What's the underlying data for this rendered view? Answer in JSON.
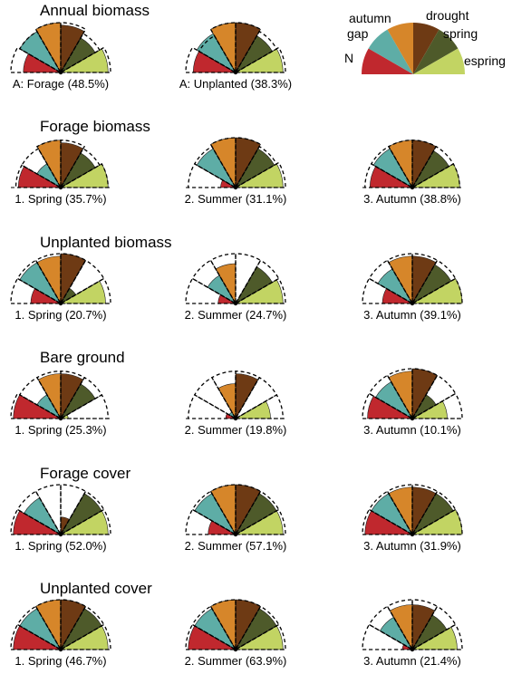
{
  "colors": {
    "N": "#c0282e",
    "gap": "#5eada6",
    "autumn": "#d6862a",
    "drought": "#6e3a14",
    "spring": "#4e5a2a",
    "espring": "#c2d463"
  },
  "legend": {
    "labels": [
      "N",
      "gap",
      "autumn",
      "drought",
      "spring",
      "espring"
    ]
  },
  "chart_data": [
    {
      "type": "polar-bar",
      "section": "Annual biomass",
      "categories": [
        "N",
        "gap",
        "autumn",
        "drought",
        "spring",
        "espring"
      ],
      "panels": [
        {
          "label": "A: Forage (48.5%)",
          "values": [
            0.75,
            0.95,
            1.0,
            0.95,
            0.8,
            0.95
          ],
          "fit": [
            1.0,
            0.95,
            1.0,
            1.0,
            0.9,
            1.0
          ]
        },
        {
          "label": "A: Unplanted (38.3%)",
          "values": [
            0.85,
            0.9,
            1.0,
            1.0,
            0.85,
            0.95
          ],
          "fit": [
            1.0,
            0.85,
            1.0,
            1.0,
            0.95,
            1.0
          ]
        }
      ]
    },
    {
      "type": "polar-bar",
      "section": "Forage biomass",
      "categories": [
        "N",
        "gap",
        "autumn",
        "drought",
        "spring",
        "espring"
      ],
      "panels": [
        {
          "label": "1. Spring (35.7%)",
          "values": [
            0.85,
            0.55,
            0.95,
            0.9,
            0.8,
            0.95
          ],
          "fit": [
            0.9,
            0.9,
            0.95,
            0.95,
            0.9,
            0.95
          ]
        },
        {
          "label": "2. Summer (31.1%)",
          "values": [
            0.3,
            0.9,
            1.0,
            1.0,
            0.9,
            0.95
          ],
          "fit": [
            0.95,
            0.95,
            1.0,
            1.0,
            0.95,
            1.0
          ]
        },
        {
          "label": "3. Autumn (38.8%)",
          "values": [
            0.85,
            0.9,
            0.95,
            0.95,
            0.85,
            0.95
          ],
          "fit": [
            0.95,
            0.95,
            0.95,
            0.95,
            0.95,
            0.95
          ]
        }
      ]
    },
    {
      "type": "polar-bar",
      "section": "Unplanted biomass",
      "categories": [
        "N",
        "gap",
        "autumn",
        "drought",
        "spring",
        "espring"
      ],
      "panels": [
        {
          "label": "1. Spring (20.7%)",
          "values": [
            0.6,
            0.95,
            0.95,
            1.0,
            0.35,
            0.9
          ],
          "fit": [
            1.0,
            1.0,
            1.0,
            1.0,
            1.0,
            1.0
          ]
        },
        {
          "label": "2. Summer (24.7%)",
          "values": [
            0.35,
            0.65,
            0.8,
            0.0,
            0.85,
            0.95
          ],
          "fit": [
            1.0,
            1.0,
            1.0,
            1.0,
            1.0,
            1.0
          ]
        },
        {
          "label": "3. Autumn (39.1%)",
          "values": [
            0.6,
            0.8,
            0.95,
            0.95,
            0.9,
            1.0
          ],
          "fit": [
            1.0,
            1.0,
            1.0,
            1.0,
            1.0,
            1.0
          ]
        }
      ]
    },
    {
      "type": "polar-bar",
      "section": "Bare ground",
      "categories": [
        "N",
        "gap",
        "autumn",
        "drought",
        "spring",
        "espring"
      ],
      "panels": [
        {
          "label": "1. Spring (25.3%)",
          "values": [
            0.95,
            0.55,
            0.9,
            0.9,
            0.8,
            0.15
          ],
          "fit": [
            1.0,
            0.95,
            0.95,
            0.95,
            0.95,
            0.95
          ]
        },
        {
          "label": "2. Summer (19.8%)",
          "values": [
            0.2,
            0.15,
            0.7,
            0.9,
            0.0,
            0.7
          ],
          "fit": [
            0.95,
            0.95,
            0.95,
            0.95,
            0.95,
            0.95
          ]
        },
        {
          "label": "3. Autumn (10.1%)",
          "values": [
            0.9,
            0.85,
            0.95,
            1.0,
            0.55,
            0.7
          ],
          "fit": [
            1.0,
            1.0,
            1.0,
            1.0,
            1.0,
            1.0
          ]
        }
      ]
    },
    {
      "type": "polar-bar",
      "section": "Forage cover",
      "categories": [
        "N",
        "gap",
        "autumn",
        "drought",
        "spring",
        "espring"
      ],
      "panels": [
        {
          "label": "1. Spring (52.0%)",
          "values": [
            0.95,
            0.85,
            0.0,
            0.35,
            0.95,
            0.95
          ],
          "fit": [
            1.0,
            1.0,
            1.0,
            1.0,
            1.0,
            1.0
          ]
        },
        {
          "label": "2. Summer (57.1%)",
          "values": [
            0.55,
            0.95,
            1.0,
            1.0,
            0.95,
            0.95
          ],
          "fit": [
            1.0,
            1.0,
            1.0,
            1.0,
            1.0,
            1.0
          ]
        },
        {
          "label": "3. Autumn (31.9%)",
          "values": [
            0.95,
            0.95,
            0.95,
            0.95,
            0.95,
            1.0
          ],
          "fit": [
            1.0,
            1.0,
            1.0,
            1.0,
            1.0,
            1.0
          ]
        }
      ]
    },
    {
      "type": "polar-bar",
      "section": "Unplanted cover",
      "categories": [
        "N",
        "gap",
        "autumn",
        "drought",
        "spring",
        "espring"
      ],
      "panels": [
        {
          "label": "1. Spring (46.7%)",
          "values": [
            0.95,
            0.95,
            1.0,
            1.0,
            0.95,
            0.95
          ],
          "fit": [
            1.0,
            1.0,
            1.0,
            1.0,
            1.0,
            1.0
          ]
        },
        {
          "label": "2. Summer (63.9%)",
          "values": [
            0.95,
            0.95,
            1.0,
            1.0,
            0.95,
            0.95
          ],
          "fit": [
            1.0,
            1.0,
            1.0,
            1.0,
            1.0,
            1.0
          ]
        },
        {
          "label": "3. Autumn (21.4%)",
          "values": [
            0.2,
            0.75,
            0.9,
            0.9,
            0.8,
            0.9
          ],
          "fit": [
            1.0,
            1.0,
            1.0,
            1.0,
            1.0,
            1.0
          ]
        }
      ]
    }
  ]
}
